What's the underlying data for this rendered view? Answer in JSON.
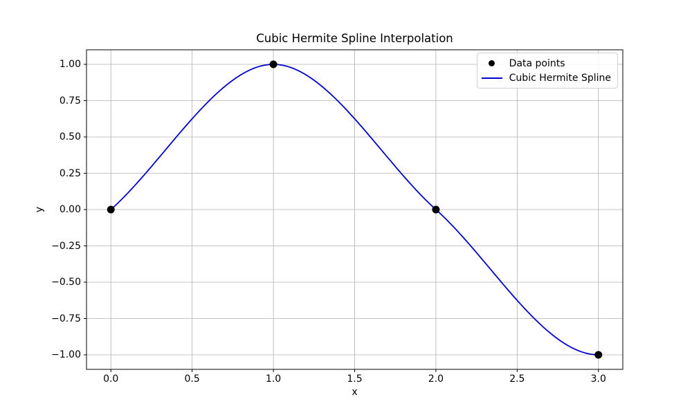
{
  "figure": {
    "background": "#ffffff"
  },
  "chart_data": {
    "type": "line",
    "title": "Cubic Hermite Spline Interpolation",
    "xlabel": "x",
    "ylabel": "y",
    "xlim": [
      -0.15,
      3.15
    ],
    "ylim": [
      -1.1,
      1.1
    ],
    "grid": true,
    "grid_color": "#b0b0b0",
    "spine_color": "#000000",
    "xticks": {
      "values": [
        0,
        0.5,
        1,
        1.5,
        2,
        2.5,
        3
      ],
      "labels": [
        "0.0",
        "0.5",
        "1.0",
        "1.5",
        "2.0",
        "2.5",
        "3.0"
      ]
    },
    "yticks": {
      "values": [
        -1,
        -0.75,
        -0.5,
        -0.25,
        0,
        0.25,
        0.5,
        0.75,
        1
      ],
      "labels": [
        "−1.00",
        "−0.75",
        "−0.50",
        "−0.25",
        "0.00",
        "0.25",
        "0.50",
        "0.75",
        "1.00"
      ]
    },
    "series": [
      {
        "name": "Data points",
        "type": "scatter",
        "color": "#000000",
        "marker_radius": 5.5,
        "x": [
          0,
          1,
          2,
          3
        ],
        "y": [
          0,
          1,
          0,
          -1
        ]
      },
      {
        "name": "Cubic Hermite Spline",
        "type": "hermite",
        "color": "#0000cd",
        "line_width": 1.8,
        "x": [
          0,
          1,
          2,
          3
        ],
        "y": [
          0,
          1,
          0,
          -1
        ],
        "dydx": [
          1,
          0,
          -1,
          0
        ]
      }
    ],
    "legend": {
      "position": "upper right",
      "entries": [
        {
          "label": "Data points",
          "marker": "circle",
          "color": "#000000"
        },
        {
          "label": "Cubic Hermite Spline",
          "marker": "line",
          "color": "#0000cd"
        }
      ]
    }
  }
}
